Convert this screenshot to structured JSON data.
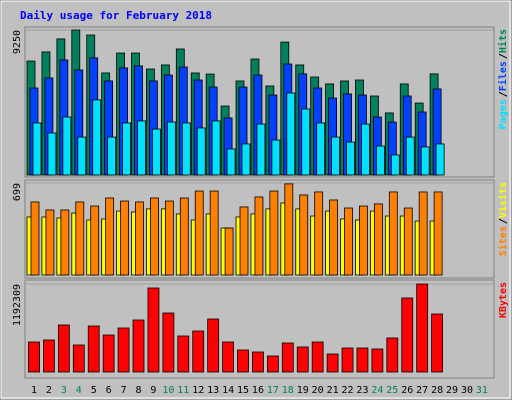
{
  "chart_data": {
    "type": "bar",
    "title": "Daily usage for February 2018",
    "categories": [
      "1",
      "2",
      "3",
      "4",
      "5",
      "6",
      "7",
      "8",
      "9",
      "10",
      "11",
      "12",
      "13",
      "14",
      "15",
      "16",
      "17",
      "18",
      "19",
      "20",
      "21",
      "22",
      "23",
      "24",
      "25",
      "26",
      "27",
      "28",
      "29",
      "30",
      "31"
    ],
    "category_colors": [
      "#000000",
      "#000000",
      "#00805c",
      "#00805c",
      "#000000",
      "#000000",
      "#000000",
      "#000000",
      "#000000",
      "#00805c",
      "#00805c",
      "#000000",
      "#000000",
      "#000000",
      "#000000",
      "#000000",
      "#00805c",
      "#00805c",
      "#000000",
      "#000000",
      "#000000",
      "#000000",
      "#000000",
      "#00805c",
      "#00805c",
      "#000000",
      "#000000",
      "#000000",
      "#000000",
      "#000000",
      "#00805c"
    ],
    "legend_separator": "/",
    "panels": [
      {
        "ylim": [
          0,
          9250
        ],
        "yticks": [
          9250
        ],
        "series": [
          {
            "name": "Hits",
            "color": "#00805c",
            "values": [
              7270,
              7850,
              8680,
              9250,
              8930,
              6510,
              7780,
              7780,
              6760,
              7020,
              8040,
              6510,
              6440,
              4400,
              6000,
              7400,
              5680,
              8480,
              7020,
              6250,
              5810,
              6000,
              6060,
              5040,
              3960,
              5810,
              4590,
              6450,
              null,
              null,
              null
            ]
          },
          {
            "name": "Files",
            "color": "#0040ff",
            "values": [
              5550,
              6190,
              7340,
              6700,
              7470,
              6000,
              6830,
              6960,
              6000,
              6380,
              6890,
              6060,
              5610,
              3640,
              5610,
              6380,
              5100,
              7080,
              6450,
              5550,
              4910,
              5170,
              5100,
              3700,
              3380,
              5040,
              4020,
              5490,
              null,
              null,
              null
            ]
          },
          {
            "name": "Pages",
            "color": "#00e0ff",
            "values": [
              3320,
              2680,
              3700,
              2420,
              4790,
              2420,
              3320,
              3450,
              2930,
              3380,
              3320,
              3000,
              3450,
              1660,
              1980,
              3250,
              2230,
              5230,
              4210,
              3320,
              2420,
              2100,
              3250,
              1850,
              1280,
              2420,
              1790,
              1980,
              null,
              null,
              null
            ]
          }
        ]
      },
      {
        "ylim": [
          0,
          699
        ],
        "yticks": [
          699
        ],
        "series": [
          {
            "name": "Visits",
            "color": "#ffff00",
            "values": [
              441,
              441,
              433,
              471,
              418,
              426,
              486,
              479,
              502,
              502,
              464,
              418,
              464,
              357,
              441,
              464,
              502,
              547,
              502,
              448,
              486,
              426,
              418,
              486,
              448,
              448,
              410,
              410,
              null,
              null,
              null
            ]
          },
          {
            "name": "Sites",
            "color": "#ff8000",
            "values": [
              555,
              494,
              494,
              555,
              524,
              585,
              562,
              555,
              585,
              562,
              585,
              638,
              638,
              357,
              517,
              593,
              638,
              692,
              608,
              631,
              570,
              509,
              524,
              540,
              631,
              509,
              631,
              631,
              null,
              null,
              null
            ]
          }
        ]
      },
      {
        "ylim": [
          0,
          1192309
        ],
        "yticks": [
          1192309
        ],
        "series": [
          {
            "name": "KBytes",
            "color": "#ff0000",
            "values": [
              406470,
              433570,
              636800,
              365820,
              623250,
              501310,
              596160,
              704550,
              1138120,
              799390,
              487760,
              555510,
              718100,
              406470,
              298080,
              270980,
              216780,
              392920,
              338730,
              406470,
              243880,
              325180,
              325180,
              311630,
              460670,
              1002630,
              1192309,
              785840,
              null,
              null,
              null
            ]
          }
        ]
      }
    ]
  }
}
